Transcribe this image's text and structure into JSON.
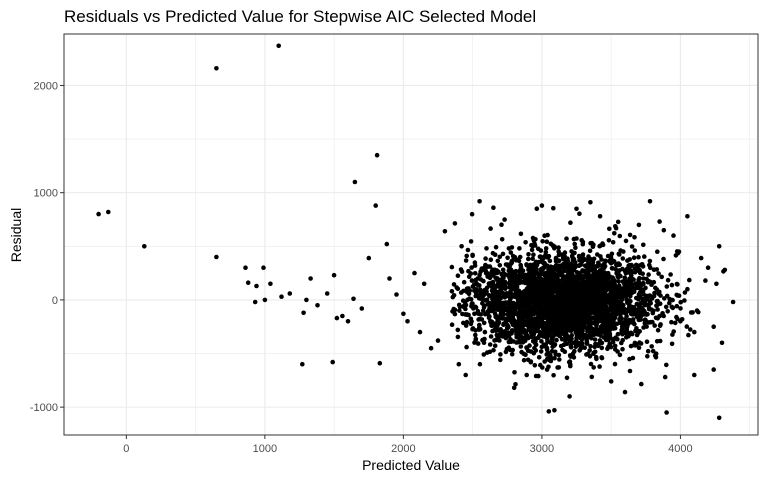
{
  "chart_data": {
    "type": "scatter",
    "title": "Residuals vs Predicted Value for Stepwise AIC Selected Model",
    "xlabel": "Predicted Value",
    "ylabel": "Residual",
    "xlim": [
      -450,
      4560
    ],
    "ylim": [
      -1260,
      2480
    ],
    "x_ticks": [
      0,
      1000,
      2000,
      3000,
      4000
    ],
    "y_ticks": [
      -1000,
      0,
      1000,
      2000
    ],
    "grid": true,
    "legend": "none",
    "point_color": "#000000",
    "panel_border_color": "#333333",
    "grid_color": "#ebebeb",
    "cluster": {
      "approx_point_count": 3200,
      "center_x": 3150,
      "center_y": -20,
      "sd_x": 330,
      "sd_y": 230
    },
    "points": [
      [
        -200,
        800
      ],
      [
        -130,
        820
      ],
      [
        130,
        500
      ],
      [
        650,
        2160
      ],
      [
        650,
        400
      ],
      [
        1100,
        2370
      ],
      [
        1650,
        1100
      ],
      [
        1810,
        1350
      ],
      [
        1800,
        880
      ],
      [
        1750,
        390
      ],
      [
        1880,
        520
      ],
      [
        860,
        300
      ],
      [
        990,
        300
      ],
      [
        880,
        160
      ],
      [
        940,
        130
      ],
      [
        1040,
        150
      ],
      [
        930,
        -20
      ],
      [
        1000,
        0
      ],
      [
        1120,
        30
      ],
      [
        1180,
        60
      ],
      [
        1300,
        0
      ],
      [
        1330,
        200
      ],
      [
        1280,
        -120
      ],
      [
        1380,
        -50
      ],
      [
        1450,
        60
      ],
      [
        1500,
        230
      ],
      [
        1520,
        -170
      ],
      [
        1560,
        -150
      ],
      [
        1600,
        -200
      ],
      [
        1640,
        10
      ],
      [
        1700,
        -80
      ],
      [
        1270,
        -600
      ],
      [
        1490,
        -580
      ],
      [
        1830,
        -590
      ],
      [
        1900,
        200
      ],
      [
        1950,
        50
      ],
      [
        2000,
        -130
      ],
      [
        2030,
        -200
      ],
      [
        2080,
        250
      ],
      [
        2120,
        -300
      ],
      [
        2150,
        150
      ],
      [
        2200,
        -450
      ],
      [
        2250,
        -380
      ],
      [
        2300,
        640
      ],
      [
        2350,
        80
      ],
      [
        2400,
        -600
      ],
      [
        2420,
        500
      ],
      [
        2450,
        -700
      ],
      [
        2500,
        420
      ],
      [
        2550,
        920
      ],
      [
        2600,
        480
      ],
      [
        2650,
        860
      ],
      [
        2700,
        -560
      ],
      [
        2800,
        -820
      ],
      [
        2890,
        -700
      ],
      [
        3000,
        880
      ],
      [
        3050,
        -1040
      ],
      [
        3090,
        -1030
      ],
      [
        3200,
        -900
      ],
      [
        3250,
        850
      ],
      [
        3350,
        910
      ],
      [
        3420,
        780
      ],
      [
        3500,
        -760
      ],
      [
        3600,
        -860
      ],
      [
        3700,
        700
      ],
      [
        3780,
        920
      ],
      [
        3850,
        730
      ],
      [
        3890,
        -720
      ],
      [
        3900,
        -1050
      ],
      [
        3880,
        650
      ],
      [
        3950,
        600
      ],
      [
        4050,
        780
      ],
      [
        4100,
        -300
      ],
      [
        4150,
        390
      ],
      [
        4200,
        300
      ],
      [
        4240,
        -650
      ],
      [
        4280,
        500
      ],
      [
        4300,
        -400
      ],
      [
        4320,
        280
      ],
      [
        4260,
        150
      ],
      [
        4380,
        -20
      ],
      [
        4280,
        -1100
      ],
      [
        4100,
        -700
      ],
      [
        4000,
        -200
      ],
      [
        4050,
        100
      ],
      [
        3990,
        450
      ],
      [
        4120,
        -100
      ],
      [
        4180,
        180
      ]
    ]
  }
}
